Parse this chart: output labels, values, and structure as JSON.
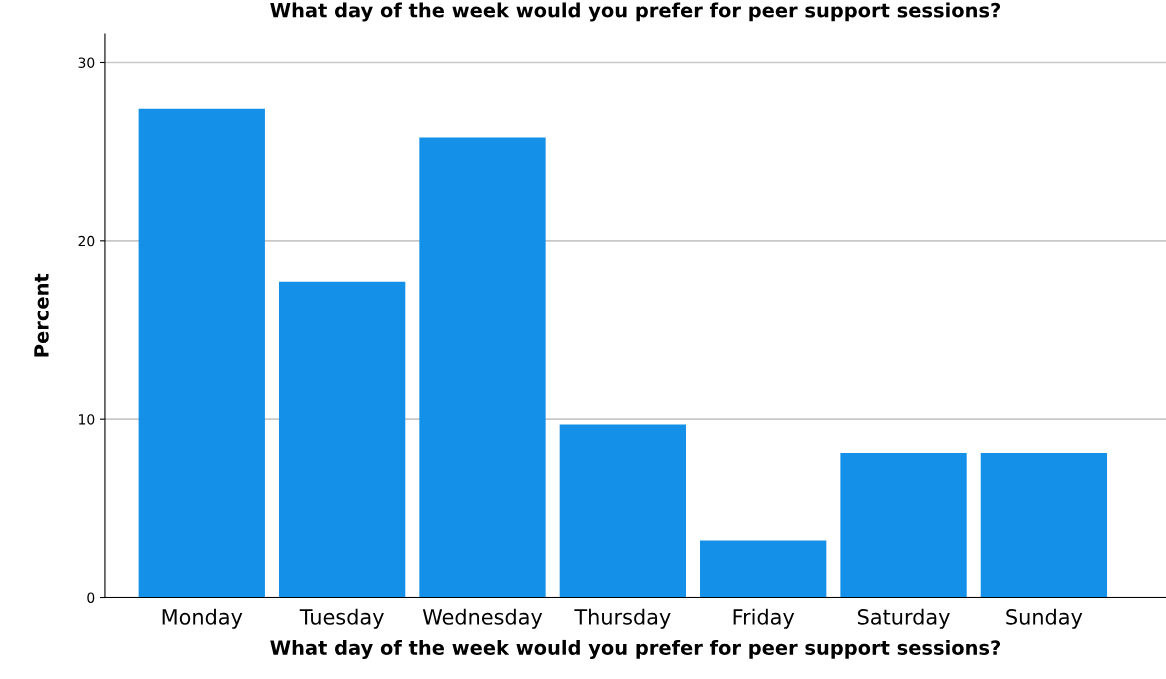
{
  "chart_data": {
    "type": "bar",
    "title": "What day of the week would you prefer for peer support sessions?",
    "xlabel": "What day of the week would you prefer for peer support sessions?",
    "ylabel": "Percent",
    "categories": [
      "Monday",
      "Tuesday",
      "Wednesday",
      "Thursday",
      "Friday",
      "Saturday",
      "Sunday"
    ],
    "values": [
      27.4,
      17.7,
      25.8,
      9.7,
      3.2,
      8.1,
      8.1
    ],
    "color": "#1490e8",
    "ylim": [
      0,
      31.6
    ],
    "yticks": [
      0,
      10,
      20,
      30
    ],
    "grid": "y"
  }
}
